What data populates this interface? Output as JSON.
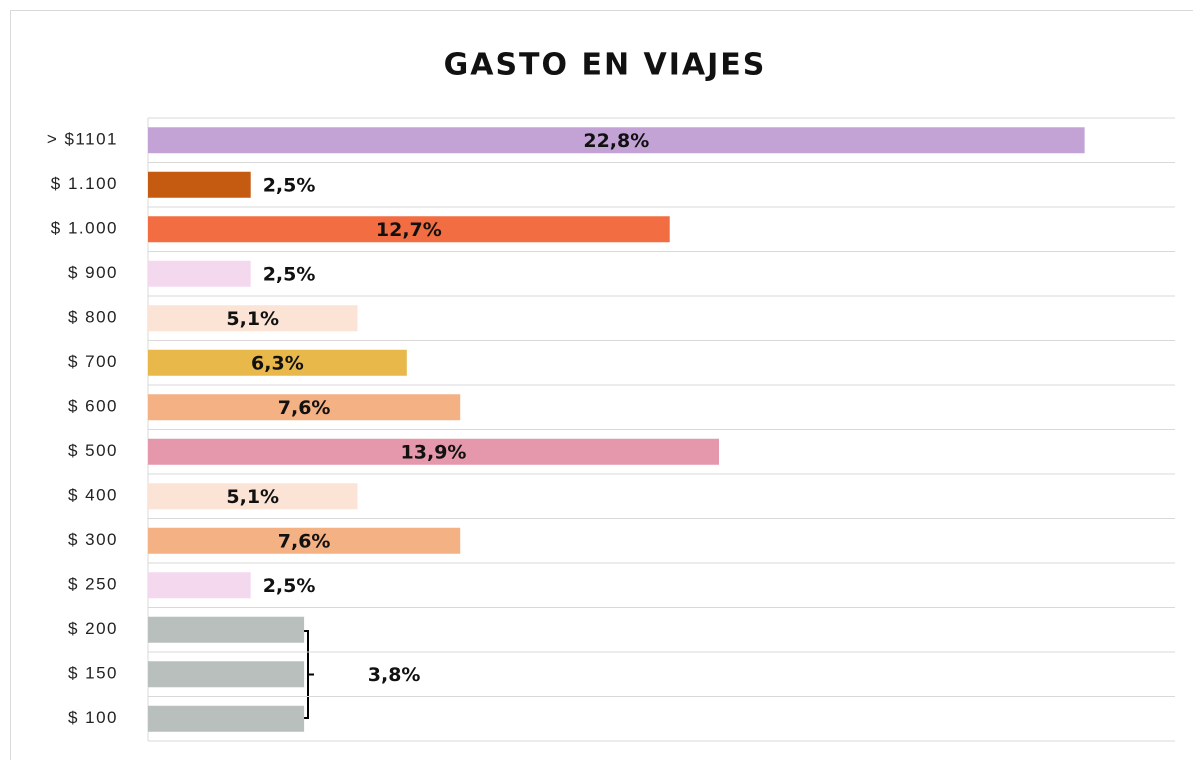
{
  "chart_data": {
    "type": "barh",
    "title": "GASTO EN VIAJES",
    "categories": [
      "> $1101",
      "$ 1.100",
      "$ 1.000",
      "$ 900",
      "$ 800",
      "$ 700",
      "$ 600",
      "$ 500",
      "$ 400",
      "$ 300",
      "$ 250",
      "$ 200",
      "$ 150",
      "$ 100"
    ],
    "values": [
      22.8,
      2.5,
      12.7,
      2.5,
      5.1,
      6.3,
      7.6,
      13.9,
      5.1,
      7.6,
      2.5,
      3.8,
      3.8,
      3.8
    ],
    "value_labels": [
      "22,8%",
      "2,5%",
      "12,7%",
      "2,5%",
      "5,1%",
      "6,3%",
      "7,6%",
      "13,9%",
      "5,1%",
      "7,6%",
      "2,5%",
      null,
      "3,8%",
      null
    ],
    "colors": [
      "#c3a3d6",
      "#c55a11",
      "#f26d41",
      "#f4d9ee",
      "#fbe4d6",
      "#e8b94a",
      "#f4b183",
      "#e597ab",
      "#fbe4d6",
      "#f4b183",
      "#f4d9ee",
      "#b8bfbc",
      "#b8bfbc",
      "#b8bfbc"
    ],
    "xlim": [
      0,
      25
    ]
  }
}
